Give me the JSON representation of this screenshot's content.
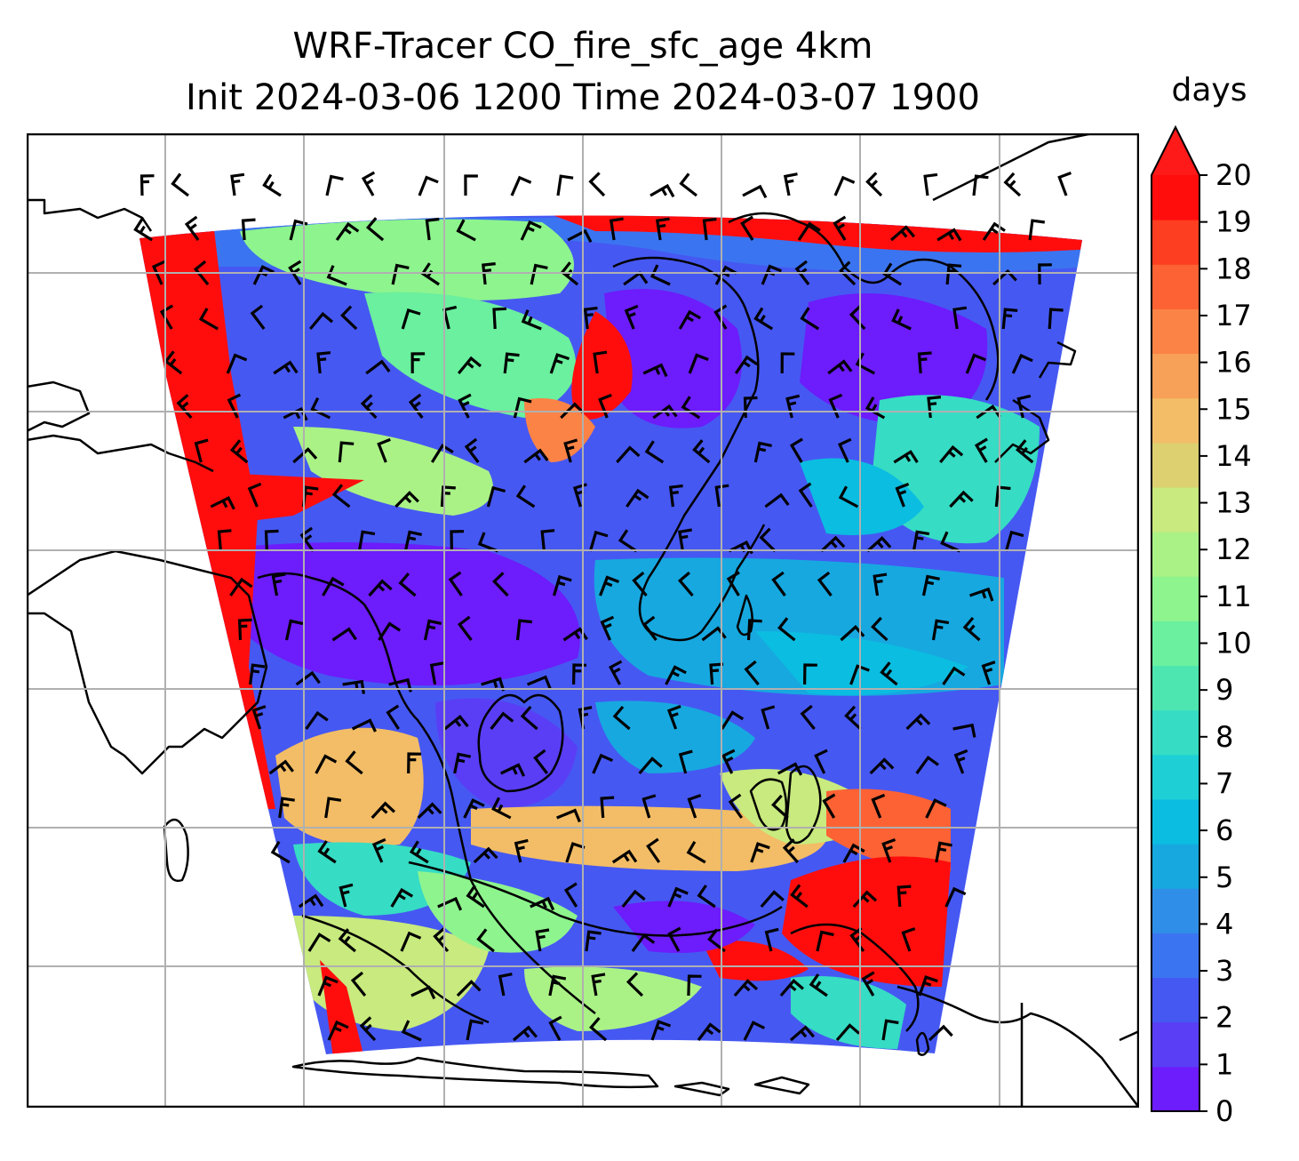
{
  "chart_data": {
    "type": "heatmap",
    "title": "WRF-Tracer CO_fire_sfc_age 4km",
    "subtitle": "Init 2024-03-06 1200 Time 2024-03-07 1900",
    "colorbar": {
      "label": "days",
      "min": 0,
      "max": 20,
      "extend": "max",
      "ticks": [
        0,
        1,
        2,
        3,
        4,
        5,
        6,
        7,
        8,
        9,
        10,
        11,
        12,
        13,
        14,
        15,
        16,
        17,
        18,
        19,
        20
      ],
      "colors": [
        "#6d1cfb",
        "#5a3ef5",
        "#4658f2",
        "#3b74f0",
        "#2f8fe8",
        "#17a8e0",
        "#0bbde0",
        "#1ecfd6",
        "#36dcc4",
        "#4ee6b0",
        "#6af09e",
        "#8ef48e",
        "#aaf286",
        "#c8ea7e",
        "#ddd070",
        "#f2bd66",
        "#f7a057",
        "#fb8346",
        "#fd6234",
        "#fe3e20",
        "#ff0d0d"
      ],
      "extend_color": "#ff1a1a"
    },
    "grid": true,
    "overlays": [
      "wind barbs",
      "coastlines",
      "country borders"
    ]
  }
}
